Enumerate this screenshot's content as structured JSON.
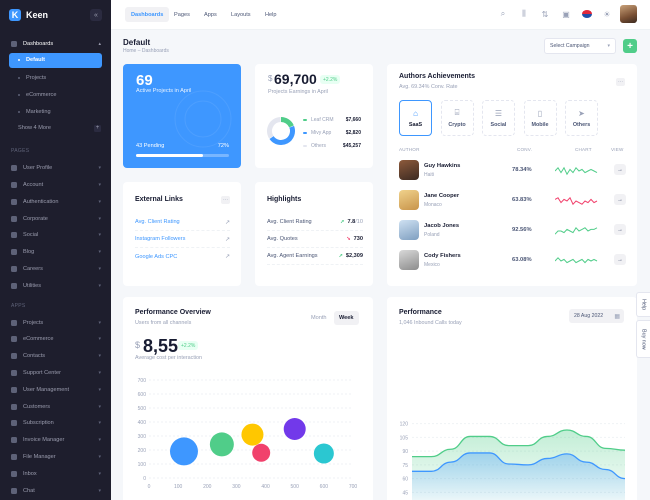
{
  "app": {
    "name": "Keen",
    "logo_letter": "K"
  },
  "sidebar": {
    "dashboards_label": "Dashboards",
    "dashboard_items": [
      "Default",
      "Projects",
      "eCommerce",
      "Marketing"
    ],
    "show_more": "Show 4 More",
    "pages_label": "PAGES",
    "pages_items": [
      "User Profile",
      "Account",
      "Authentication",
      "Corporate",
      "Social",
      "Blog",
      "Careers",
      "Utilities"
    ],
    "apps_label": "APPS",
    "apps_items": [
      "Projects",
      "eCommerce",
      "Contacts",
      "Support Center",
      "User Management",
      "Customers",
      "Subscription",
      "Invoice Manager",
      "File Manager",
      "Inbox",
      "Chat"
    ]
  },
  "topbar": {
    "tabs": [
      "Dashboards",
      "Pages",
      "Apps",
      "Layouts",
      "Help"
    ],
    "icons": [
      "search-icon",
      "chart-bar-icon",
      "sort-icon",
      "notifications-icon",
      "flag-icon",
      "theme-sun-icon",
      "user-avatar"
    ]
  },
  "header": {
    "title": "Default",
    "breadcrumb": "Home – Dashboards",
    "campaign_select": "Select Campaign",
    "add_label": "+"
  },
  "active_projects": {
    "count": "69",
    "label": "Active Projects in April",
    "pending": "43 Pending",
    "percent_label": "72%",
    "percent": 72
  },
  "projects_earnings": {
    "currency": "$",
    "amount": "69,700",
    "badge": "+2.2%",
    "subtitle": "Projects Earnings in April",
    "legend": [
      {
        "name": "Leaf CRM",
        "value": "$7,660",
        "color": "#50cd89",
        "share": 0.19
      },
      {
        "name": "Mivy App",
        "value": "$2,820",
        "color": "#3e97ff",
        "share": 0.47
      },
      {
        "name": "Others",
        "value": "$45,257",
        "color": "#e4e6ef",
        "share": 0.34
      }
    ]
  },
  "authors": {
    "title": "Authors Achievements",
    "subtitle": "Avg. 69.34% Conv. Rate",
    "tabs": [
      {
        "label": "SaaS",
        "icon": "saas-icon"
      },
      {
        "label": "Crypto",
        "icon": "bank-icon"
      },
      {
        "label": "Social",
        "icon": "social-icon"
      },
      {
        "label": "Mobile",
        "icon": "mobile-icon"
      },
      {
        "label": "Others",
        "icon": "send-icon"
      }
    ],
    "columns": [
      "AUTHOR",
      "CONV.",
      "CHART",
      "VIEW"
    ],
    "rows": [
      {
        "name": "Guy Hawkins",
        "location": "Haiti",
        "conv": "78.34%",
        "chart_color": "#50cd89"
      },
      {
        "name": "Jane Cooper",
        "location": "Monaco",
        "conv": "63.83%",
        "chart_color": "#f1416c"
      },
      {
        "name": "Jacob Jones",
        "location": "Poland",
        "conv": "92.56%",
        "chart_color": "#50cd89"
      },
      {
        "name": "Cody Fishers",
        "location": "Mexico",
        "conv": "63.08%",
        "chart_color": "#50cd89"
      }
    ]
  },
  "external_links": {
    "title": "External Links",
    "links": [
      "Avg. Client Rating",
      "Instagram Followers",
      "Google Ads CPC"
    ]
  },
  "highlights": {
    "title": "Highlights",
    "rows": [
      {
        "label": "Avg. Client Rating",
        "value": "7.8",
        "suffix": "/10",
        "trend": "up",
        "color": "#50cd89"
      },
      {
        "label": "Avg. Quotes",
        "value": "730",
        "suffix": "",
        "trend": "down",
        "color": "#f1416c"
      },
      {
        "label": "Avg. Agent Earnings",
        "value": "$2,309",
        "suffix": "",
        "trend": "up",
        "color": "#50cd89"
      }
    ]
  },
  "performance_overview": {
    "title": "Performance Overview",
    "subtitle": "Users from all channels",
    "toggles": [
      "Month",
      "Week"
    ],
    "currency": "$",
    "amount": "8,55",
    "badge": "+2.2%",
    "caption": "Average cost per interaction"
  },
  "performance": {
    "title": "Performance",
    "subtitle": "1,046 Inbound Calls today",
    "date": "28 Aug 2022"
  },
  "side_tabs": [
    "Help",
    "Buy now"
  ],
  "chart_data": [
    {
      "type": "scatter",
      "x_ticks": [
        0,
        100,
        200,
        300,
        400,
        500,
        600,
        700
      ],
      "y_ticks": [
        0,
        100,
        200,
        300,
        400,
        500,
        600,
        700
      ],
      "xlim": [
        0,
        700
      ],
      "ylim": [
        0,
        700
      ],
      "points": [
        {
          "x": 120,
          "y": 190,
          "r": 14,
          "color": "#3e97ff"
        },
        {
          "x": 250,
          "y": 240,
          "r": 12,
          "color": "#50cd89"
        },
        {
          "x": 355,
          "y": 310,
          "r": 11,
          "color": "#ffc700"
        },
        {
          "x": 500,
          "y": 350,
          "r": 11,
          "color": "#7239ea"
        },
        {
          "x": 385,
          "y": 180,
          "r": 9,
          "color": "#f1416c"
        },
        {
          "x": 600,
          "y": 175,
          "r": 10,
          "color": "#2bc7d1"
        }
      ]
    },
    {
      "type": "area",
      "y_ticks": [
        120,
        105,
        90,
        75,
        60,
        45
      ],
      "ylim": [
        40,
        125
      ],
      "series": [
        {
          "color": "#50cd89",
          "values": [
            84,
            84,
            92,
            106,
            106,
            96,
            96,
            106,
            113,
            106,
            93,
            91
          ]
        },
        {
          "color": "#3e97ff",
          "values": [
            68,
            68,
            78,
            88,
            88,
            76,
            75,
            82,
            87,
            78,
            70,
            60
          ]
        }
      ]
    }
  ]
}
